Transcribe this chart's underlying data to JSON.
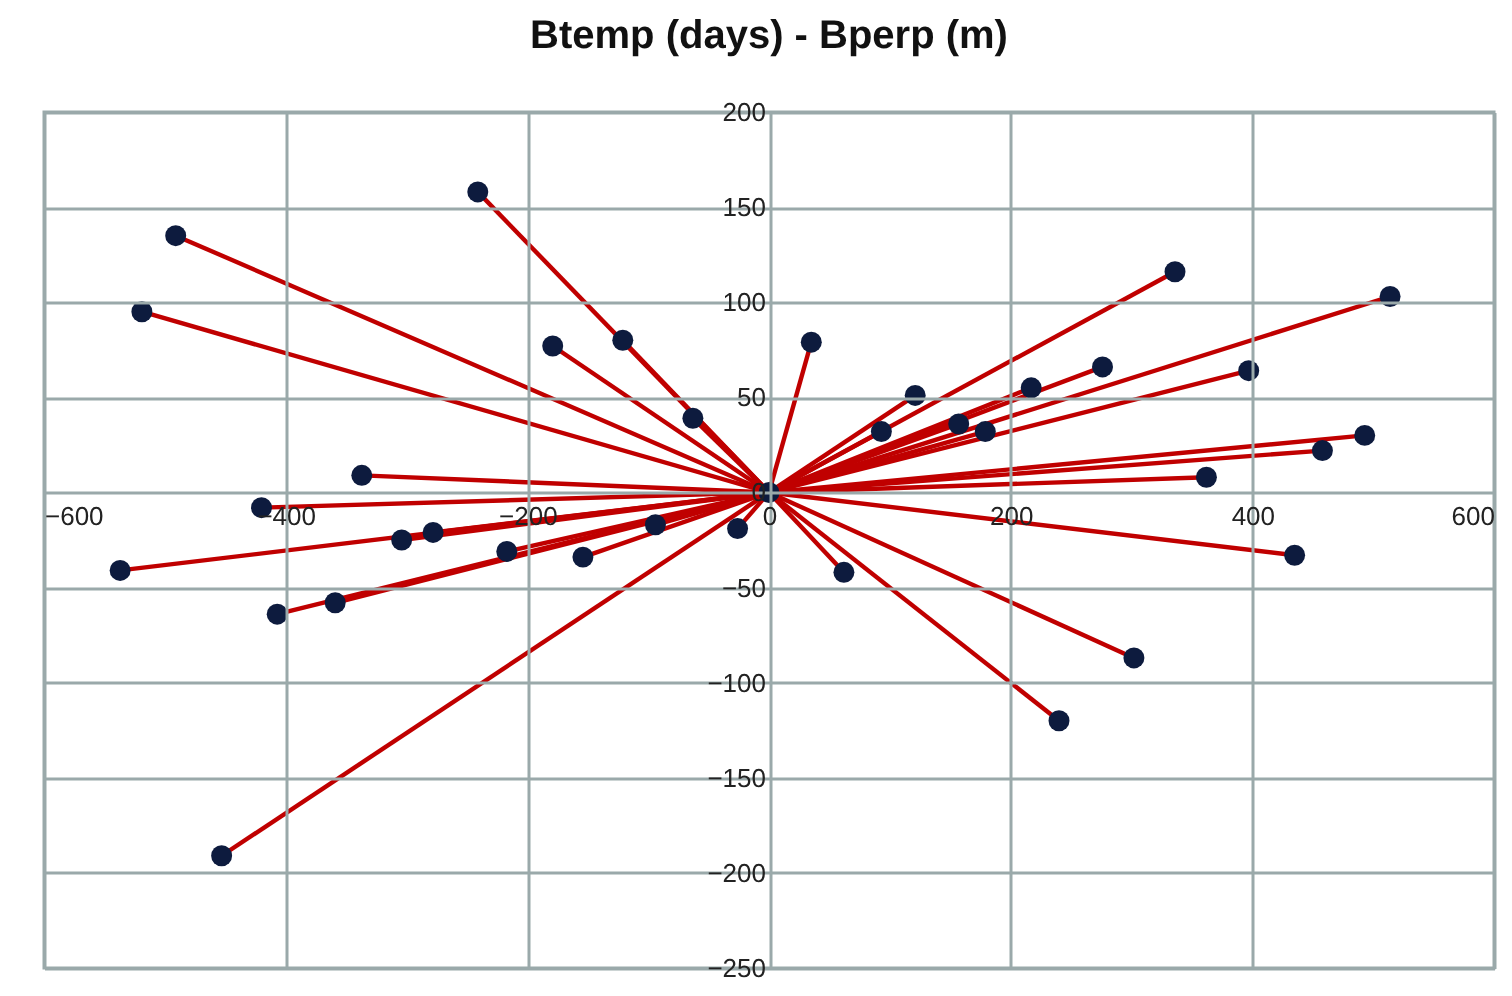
{
  "chart_data": {
    "type": "scatter",
    "title": "Btemp (days) - Bperp (m)",
    "xlim": [
      -600,
      600
    ],
    "xticks": [
      -600,
      -400,
      -200,
      0,
      200,
      400,
      600
    ],
    "ylim": [
      -250,
      200
    ],
    "yticks": [
      -250,
      -200,
      -150,
      -100,
      -50,
      0,
      50,
      100,
      150,
      200
    ],
    "grid": true,
    "series": [
      {
        "type": "line",
        "color": "#c00000",
        "x": [
          0,
          -241
        ],
        "values": [
          0,
          158
        ]
      },
      {
        "type": "line",
        "color": "#c00000",
        "x": [
          0,
          -491
        ],
        "values": [
          0,
          135
        ]
      },
      {
        "type": "line",
        "color": "#c00000",
        "x": [
          0,
          -519
        ],
        "values": [
          0,
          95
        ]
      },
      {
        "type": "line",
        "color": "#c00000",
        "x": [
          0,
          -179
        ],
        "values": [
          0,
          77
        ]
      },
      {
        "type": "line",
        "color": "#c00000",
        "x": [
          0,
          -121
        ],
        "values": [
          0,
          80
        ]
      },
      {
        "type": "line",
        "color": "#c00000",
        "x": [
          0,
          -63
        ],
        "values": [
          0,
          39
        ]
      },
      {
        "type": "line",
        "color": "#c00000",
        "x": [
          0,
          -337
        ],
        "values": [
          0,
          9
        ]
      },
      {
        "type": "line",
        "color": "#c00000",
        "x": [
          0,
          -420
        ],
        "values": [
          0,
          -8
        ]
      },
      {
        "type": "line",
        "color": "#c00000",
        "x": [
          0,
          -537
        ],
        "values": [
          0,
          -41
        ]
      },
      {
        "type": "line",
        "color": "#c00000",
        "x": [
          0,
          -407
        ],
        "values": [
          0,
          -64
        ]
      },
      {
        "type": "line",
        "color": "#c00000",
        "x": [
          0,
          -359
        ],
        "values": [
          0,
          -58
        ]
      },
      {
        "type": "line",
        "color": "#c00000",
        "x": [
          0,
          -304
        ],
        "values": [
          0,
          -25
        ]
      },
      {
        "type": "line",
        "color": "#c00000",
        "x": [
          0,
          -278
        ],
        "values": [
          0,
          -21
        ]
      },
      {
        "type": "line",
        "color": "#c00000",
        "x": [
          0,
          -217
        ],
        "values": [
          0,
          -31
        ]
      },
      {
        "type": "line",
        "color": "#c00000",
        "x": [
          0,
          -154
        ],
        "values": [
          0,
          -34
        ]
      },
      {
        "type": "line",
        "color": "#c00000",
        "x": [
          0,
          -94
        ],
        "values": [
          0,
          -17
        ]
      },
      {
        "type": "line",
        "color": "#c00000",
        "x": [
          0,
          -26
        ],
        "values": [
          0,
          -19
        ]
      },
      {
        "type": "line",
        "color": "#c00000",
        "x": [
          0,
          -453
        ],
        "values": [
          0,
          -191
        ]
      },
      {
        "type": "line",
        "color": "#c00000",
        "x": [
          0,
          35
        ],
        "values": [
          0,
          79
        ]
      },
      {
        "type": "line",
        "color": "#c00000",
        "x": [
          0,
          62
        ],
        "values": [
          0,
          -42
        ]
      },
      {
        "type": "line",
        "color": "#c00000",
        "x": [
          0,
          93
        ],
        "values": [
          0,
          32
        ]
      },
      {
        "type": "line",
        "color": "#c00000",
        "x": [
          0,
          121
        ],
        "values": [
          0,
          51
        ]
      },
      {
        "type": "line",
        "color": "#c00000",
        "x": [
          0,
          157
        ],
        "values": [
          0,
          36
        ]
      },
      {
        "type": "line",
        "color": "#c00000",
        "x": [
          0,
          179
        ],
        "values": [
          0,
          32
        ]
      },
      {
        "type": "line",
        "color": "#c00000",
        "x": [
          0,
          217
        ],
        "values": [
          0,
          55
        ]
      },
      {
        "type": "line",
        "color": "#c00000",
        "x": [
          0,
          276
        ],
        "values": [
          0,
          66
        ]
      },
      {
        "type": "line",
        "color": "#c00000",
        "x": [
          0,
          336
        ],
        "values": [
          0,
          116
        ]
      },
      {
        "type": "line",
        "color": "#c00000",
        "x": [
          0,
          397
        ],
        "values": [
          0,
          64
        ]
      },
      {
        "type": "line",
        "color": "#c00000",
        "x": [
          0,
          514
        ],
        "values": [
          0,
          103
        ]
      },
      {
        "type": "line",
        "color": "#c00000",
        "x": [
          0,
          493
        ],
        "values": [
          0,
          30
        ]
      },
      {
        "type": "line",
        "color": "#c00000",
        "x": [
          0,
          458
        ],
        "values": [
          0,
          22
        ]
      },
      {
        "type": "line",
        "color": "#c00000",
        "x": [
          0,
          362
        ],
        "values": [
          0,
          8
        ]
      },
      {
        "type": "line",
        "color": "#c00000",
        "x": [
          0,
          435
        ],
        "values": [
          0,
          -33
        ]
      },
      {
        "type": "line",
        "color": "#c00000",
        "x": [
          0,
          302
        ],
        "values": [
          0,
          -87
        ]
      },
      {
        "type": "line",
        "color": "#c00000",
        "x": [
          0,
          240
        ],
        "values": [
          0,
          -120
        ]
      },
      {
        "marker": "circle",
        "color": "#0d1b3e",
        "x": [
          0,
          -241,
          -491,
          -519,
          -179,
          -121,
          -63,
          -337,
          -420,
          -537,
          -407,
          -359,
          -304,
          -278,
          -217,
          -154,
          -94,
          -26,
          -453,
          35,
          62,
          93,
          121,
          157,
          179,
          217,
          276,
          336,
          397,
          514,
          493,
          458,
          362,
          435,
          302,
          240
        ],
        "values": [
          0,
          158,
          135,
          95,
          77,
          80,
          39,
          9,
          -8,
          -41,
          -64,
          -58,
          -25,
          -21,
          -31,
          -34,
          -17,
          -19,
          -191,
          79,
          -42,
          32,
          51,
          36,
          32,
          55,
          66,
          116,
          64,
          103,
          30,
          22,
          8,
          -33,
          -87,
          -120
        ]
      }
    ]
  }
}
